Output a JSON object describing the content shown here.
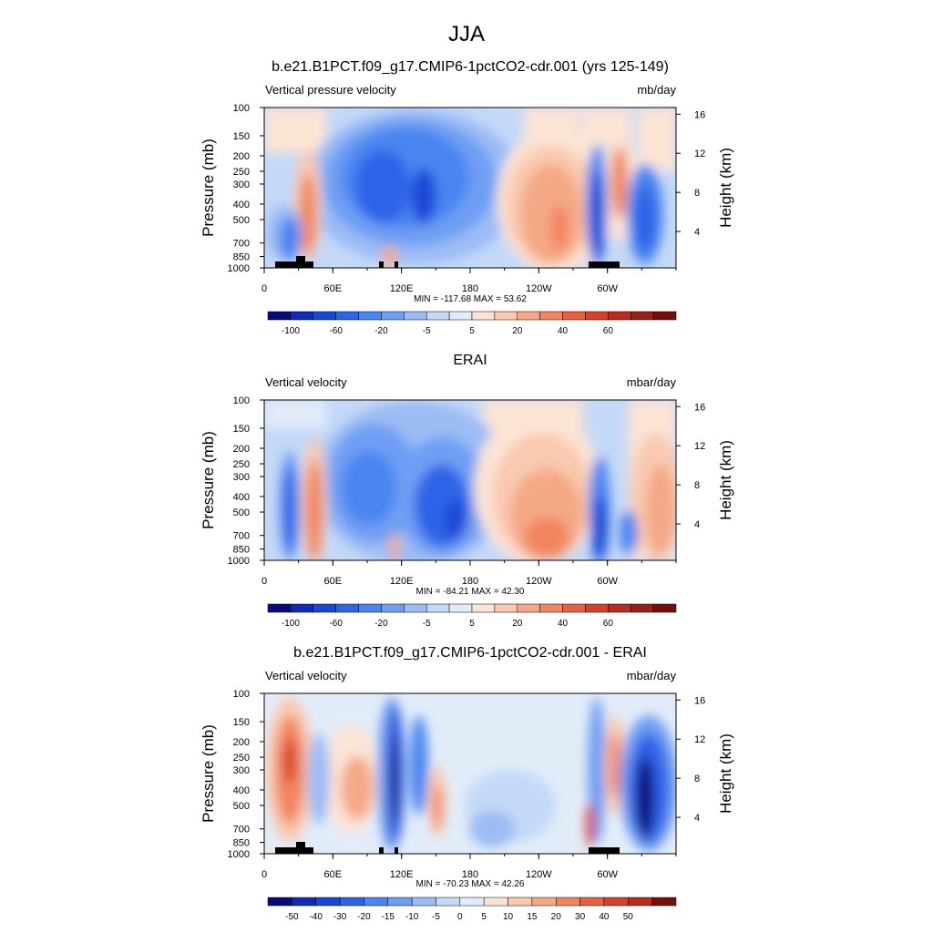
{
  "figure": {
    "title": "JJA",
    "y_axis_label": "Pressure (mb)",
    "y2_axis_label": "Height (km)",
    "pressure_ticks": [
      "100",
      "150",
      "200",
      "250",
      "300",
      "400",
      "500",
      "700",
      "850",
      "1000"
    ],
    "height_ticks": [
      "16",
      "12",
      "8",
      "4"
    ],
    "lon_ticks": [
      "0",
      "60E",
      "120E",
      "180",
      "120W",
      "60W"
    ]
  },
  "chart_data": [
    {
      "type": "heatmap",
      "title": "b.e21.B1PCT.f09_g17.CMIP6-1pctCO2-cdr.001 (yrs 125-149)",
      "left_label": "Vertical pressure velocity",
      "units": "mb/day",
      "stats": "MIN = -117.68  MAX =  53.62",
      "min": -117.68,
      "max": 53.62,
      "colorbar_ticks": [
        "-100",
        "-60",
        "-20",
        "-5",
        "5",
        "20",
        "40",
        "60"
      ],
      "colors": [
        "#0a0a7c",
        "#0f2bb8",
        "#1a48d6",
        "#2e64e8",
        "#4a85f0",
        "#6e9ef3",
        "#9bbcf5",
        "#c4d9f7",
        "#e2ecf9",
        "#fce4d5",
        "#f9c9b0",
        "#f5a886",
        "#f18560",
        "#e8603e",
        "#d7402a",
        "#bb2a1e",
        "#992016",
        "#760f0c"
      ],
      "max_value_color": "#f18560",
      "min_value_color": "#0f2bb8",
      "topography": true
    },
    {
      "type": "heatmap",
      "title": "ERAI",
      "left_label": "Vertical velocity",
      "units": "mbar/day",
      "stats": "MIN = -84.21  MAX =  42.30",
      "min": -84.21,
      "max": 42.3,
      "colorbar_ticks": [
        "-100",
        "-60",
        "-20",
        "-5",
        "5",
        "20",
        "40",
        "60"
      ],
      "colors": [
        "#0a0a7c",
        "#0f2bb8",
        "#1a48d6",
        "#2e64e8",
        "#4a85f0",
        "#6e9ef3",
        "#9bbcf5",
        "#c4d9f7",
        "#e2ecf9",
        "#fce4d5",
        "#f9c9b0",
        "#f5a886",
        "#f18560",
        "#e8603e",
        "#d7402a",
        "#bb2a1e",
        "#992016",
        "#760f0c"
      ],
      "max_value_color": "#f18560",
      "min_value_color": "#1a48d6",
      "topography": false
    },
    {
      "type": "heatmap",
      "title": "b.e21.B1PCT.f09_g17.CMIP6-1pctCO2-cdr.001 - ERAI",
      "left_label": "Vertical velocity",
      "units": "mbar/day",
      "stats": "MIN = -70.23  MAX =  42.26",
      "min": -70.23,
      "max": 42.26,
      "colorbar_ticks": [
        "-50",
        "-40",
        "-30",
        "-20",
        "-15",
        "-10",
        "-5",
        "0",
        "5",
        "10",
        "15",
        "20",
        "30",
        "40",
        "50"
      ],
      "colors": [
        "#0a0a7c",
        "#0f2bb8",
        "#1a48d6",
        "#2e64e8",
        "#4a85f0",
        "#6e9ef3",
        "#9bbcf5",
        "#c4d9f7",
        "#e2ecf9",
        "#fce4d5",
        "#f9c9b0",
        "#f5a886",
        "#f18560",
        "#e8603e",
        "#d7402a",
        "#bb2a1e",
        "#760f0c"
      ],
      "max_value_color": "#d7402a",
      "min_value_color": "#0a0a7c",
      "topography": true
    }
  ]
}
